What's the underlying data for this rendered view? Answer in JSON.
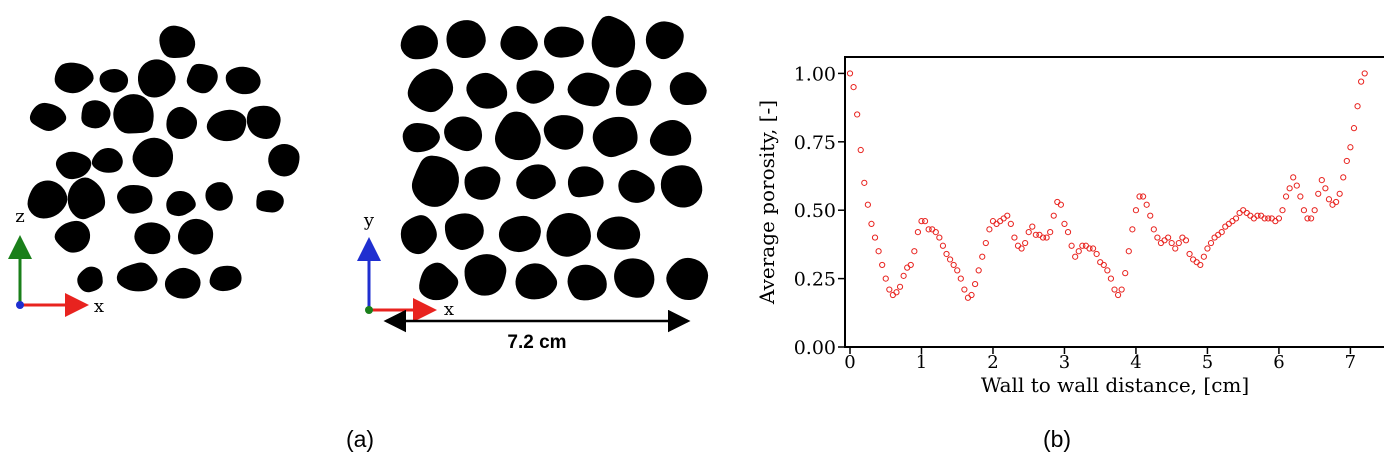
{
  "panel_a": {
    "label": "(a)",
    "left_axes": {
      "vertical": "z",
      "horizontal": "x"
    },
    "right_axes": {
      "vertical": "y",
      "horizontal": "x"
    },
    "scale_label": "7.2 cm"
  },
  "panel_b": {
    "label": "(b)"
  },
  "chart_data": {
    "type": "scatter",
    "marker": "open-circle",
    "color": "#e8231f",
    "xlabel": "Wall to wall distance, [cm]",
    "ylabel": "Average porosity, [-]",
    "xlim": [
      -0.07,
      7.47
    ],
    "ylim": [
      0,
      1.06
    ],
    "xticks": [
      0,
      1,
      2,
      3,
      4,
      5,
      6,
      7
    ],
    "yticks": [
      {
        "value": 0,
        "label": "0.00"
      },
      0.25,
      {
        "value": 0.5,
        "label": "0.50"
      },
      0.75,
      {
        "value": 1,
        "label": "1.00"
      }
    ],
    "x": [
      0,
      0.05,
      0.1,
      0.15,
      0.2,
      0.25,
      0.3,
      0.35,
      0.4,
      0.45,
      0.5,
      0.55,
      0.6,
      0.65,
      0.7,
      0.75,
      0.8,
      0.85,
      0.9,
      0.95,
      1,
      1.05,
      1.1,
      1.15,
      1.2,
      1.25,
      1.3,
      1.35,
      1.4,
      1.45,
      1.5,
      1.55,
      1.6,
      1.65,
      1.7,
      1.75,
      1.8,
      1.85,
      1.9,
      1.95,
      2,
      2.05,
      2.1,
      2.15,
      2.2,
      2.25,
      2.3,
      2.35,
      2.4,
      2.45,
      2.5,
      2.55,
      2.6,
      2.65,
      2.7,
      2.75,
      2.8,
      2.85,
      2.9,
      2.95,
      3,
      3.05,
      3.1,
      3.15,
      3.2,
      3.25,
      3.3,
      3.35,
      3.4,
      3.45,
      3.5,
      3.55,
      3.6,
      3.65,
      3.7,
      3.75,
      3.8,
      3.85,
      3.9,
      3.95,
      4,
      4.05,
      4.1,
      4.15,
      4.2,
      4.25,
      4.3,
      4.35,
      4.4,
      4.45,
      4.5,
      4.55,
      4.6,
      4.65,
      4.7,
      4.75,
      4.8,
      4.85,
      4.9,
      4.95,
      5,
      5.05,
      5.1,
      5.15,
      5.2,
      5.25,
      5.3,
      5.35,
      5.4,
      5.45,
      5.5,
      5.55,
      5.6,
      5.65,
      5.7,
      5.75,
      5.8,
      5.85,
      5.9,
      5.95,
      6,
      6.05,
      6.1,
      6.15,
      6.2,
      6.25,
      6.3,
      6.35,
      6.4,
      6.45,
      6.5,
      6.55,
      6.6,
      6.65,
      6.7,
      6.75,
      6.8,
      6.85,
      6.9,
      6.95,
      7,
      7.05,
      7.1,
      7.15,
      7.2
    ],
    "values": [
      1.0,
      0.95,
      0.85,
      0.72,
      0.6,
      0.52,
      0.45,
      0.4,
      0.35,
      0.3,
      0.25,
      0.21,
      0.19,
      0.2,
      0.22,
      0.26,
      0.29,
      0.3,
      0.35,
      0.42,
      0.46,
      0.46,
      0.43,
      0.43,
      0.42,
      0.4,
      0.37,
      0.34,
      0.32,
      0.3,
      0.28,
      0.25,
      0.21,
      0.18,
      0.19,
      0.23,
      0.28,
      0.33,
      0.38,
      0.43,
      0.46,
      0.45,
      0.46,
      0.47,
      0.48,
      0.45,
      0.4,
      0.37,
      0.36,
      0.38,
      0.42,
      0.44,
      0.41,
      0.41,
      0.4,
      0.4,
      0.42,
      0.48,
      0.53,
      0.52,
      0.45,
      0.42,
      0.37,
      0.33,
      0.35,
      0.37,
      0.37,
      0.36,
      0.36,
      0.34,
      0.31,
      0.3,
      0.28,
      0.25,
      0.21,
      0.19,
      0.21,
      0.27,
      0.35,
      0.43,
      0.5,
      0.55,
      0.55,
      0.52,
      0.48,
      0.43,
      0.4,
      0.38,
      0.39,
      0.4,
      0.38,
      0.36,
      0.38,
      0.4,
      0.39,
      0.34,
      0.32,
      0.31,
      0.3,
      0.33,
      0.36,
      0.38,
      0.4,
      0.41,
      0.42,
      0.44,
      0.45,
      0.46,
      0.47,
      0.49,
      0.5,
      0.49,
      0.48,
      0.47,
      0.48,
      0.48,
      0.47,
      0.47,
      0.47,
      0.46,
      0.47,
      0.5,
      0.55,
      0.58,
      0.62,
      0.59,
      0.55,
      0.5,
      0.47,
      0.47,
      0.5,
      0.56,
      0.61,
      0.58,
      0.54,
      0.52,
      0.53,
      0.56,
      0.62,
      0.68,
      0.73,
      0.8,
      0.88,
      0.97,
      1.0
    ]
  }
}
